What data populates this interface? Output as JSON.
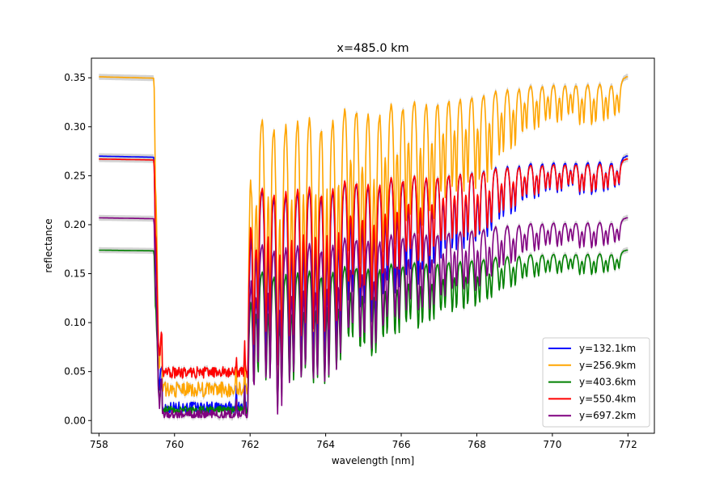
{
  "chart_data": {
    "type": "line",
    "title": "x=485.0 km",
    "xlabel": "wavelength [nm]",
    "ylabel": "reflectance",
    "xlim": [
      757.8,
      772.7
    ],
    "ylim": [
      -0.013,
      0.37
    ],
    "xticks": [
      758,
      760,
      762,
      764,
      766,
      768,
      770,
      772
    ],
    "yticks": [
      0.0,
      0.05,
      0.1,
      0.15,
      0.2,
      0.25,
      0.3,
      0.35
    ],
    "xtick_labels": [
      "758",
      "760",
      "762",
      "764",
      "766",
      "768",
      "770",
      "772"
    ],
    "ytick_labels": [
      "0.00",
      "0.05",
      "0.10",
      "0.15",
      "0.20",
      "0.25",
      "0.30",
      "0.35"
    ],
    "legend_position": "lower-right",
    "grid": false,
    "uncertainty_band_color": "#c8c8c8",
    "x_range": [
      758,
      772
    ],
    "series": [
      {
        "name": "y=132.1km",
        "color": "#0000ff",
        "continuum": 0.27,
        "floor": 0.012
      },
      {
        "name": "y=256.9km",
        "color": "#ffa500",
        "continuum": 0.351,
        "floor": 0.03
      },
      {
        "name": "y=403.6km",
        "color": "#008000",
        "continuum": 0.174,
        "floor": 0.01
      },
      {
        "name": "y=550.4km",
        "color": "#ff0000",
        "continuum": 0.267,
        "floor": 0.048
      },
      {
        "name": "y=697.2km",
        "color": "#800080",
        "continuum": 0.207,
        "floor": 0.005
      }
    ]
  }
}
